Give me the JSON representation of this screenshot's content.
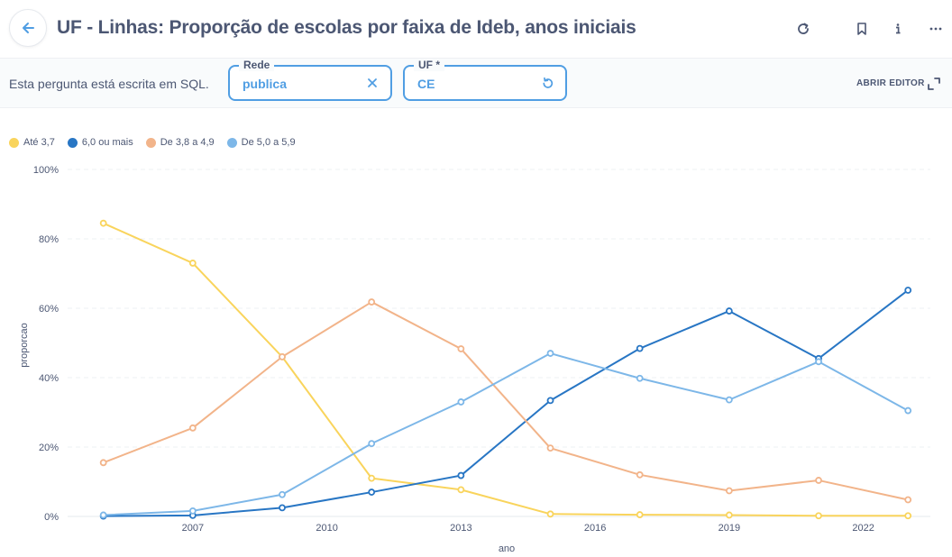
{
  "header": {
    "title": "UF - Linhas: Proporção de escolas por faixa de Ideb, anos iniciais",
    "icons": [
      "arrow-left-icon",
      "refresh-icon",
      "bookmark-icon",
      "info-icon",
      "more-icon"
    ]
  },
  "filterbar": {
    "sql_note": "Esta pergunta está escrita em SQL.",
    "params": [
      {
        "label": "Rede",
        "value": "publica",
        "icon": "close-icon"
      },
      {
        "label": "UF *",
        "value": "CE",
        "icon": "reset-icon"
      }
    ],
    "open_editor": "ABRIR EDITOR"
  },
  "colors": {
    "accent": "#509ee3",
    "series": [
      "#f9d45c",
      "#2876c4",
      "#f2b48a",
      "#7db7e8"
    ]
  },
  "chart_data": {
    "type": "line",
    "xlabel": "ano",
    "ylabel": "proporcao",
    "x": [
      2005,
      2007,
      2009,
      2011,
      2013,
      2015,
      2017,
      2019,
      2021,
      2023
    ],
    "xticks": [
      "2007",
      "2010",
      "2013",
      "2016",
      "2019",
      "2022"
    ],
    "xtick_values": [
      2007,
      2010,
      2013,
      2016,
      2019,
      2022
    ],
    "yticks": [
      "0%",
      "20%",
      "40%",
      "60%",
      "80%",
      "100%"
    ],
    "ylim": [
      0,
      1
    ],
    "grid": true,
    "legend_position": "top-left",
    "series": [
      {
        "name": "Até 3,7",
        "values": [
          0.845,
          0.73,
          0.46,
          0.11,
          0.077,
          0.007,
          0.005,
          0.004,
          0.002,
          0.002
        ]
      },
      {
        "name": "6,0 ou mais",
        "values": [
          0.001,
          0.003,
          0.025,
          0.07,
          0.118,
          0.334,
          0.484,
          0.592,
          0.455,
          0.652
        ]
      },
      {
        "name": "De 3,8 a 4,9",
        "values": [
          0.155,
          0.255,
          0.46,
          0.618,
          0.483,
          0.197,
          0.12,
          0.074,
          0.104,
          0.048
        ]
      },
      {
        "name": "De 5,0 a 5,9",
        "values": [
          0.004,
          0.016,
          0.063,
          0.21,
          0.33,
          0.47,
          0.398,
          0.336,
          0.446,
          0.305
        ]
      }
    ]
  }
}
